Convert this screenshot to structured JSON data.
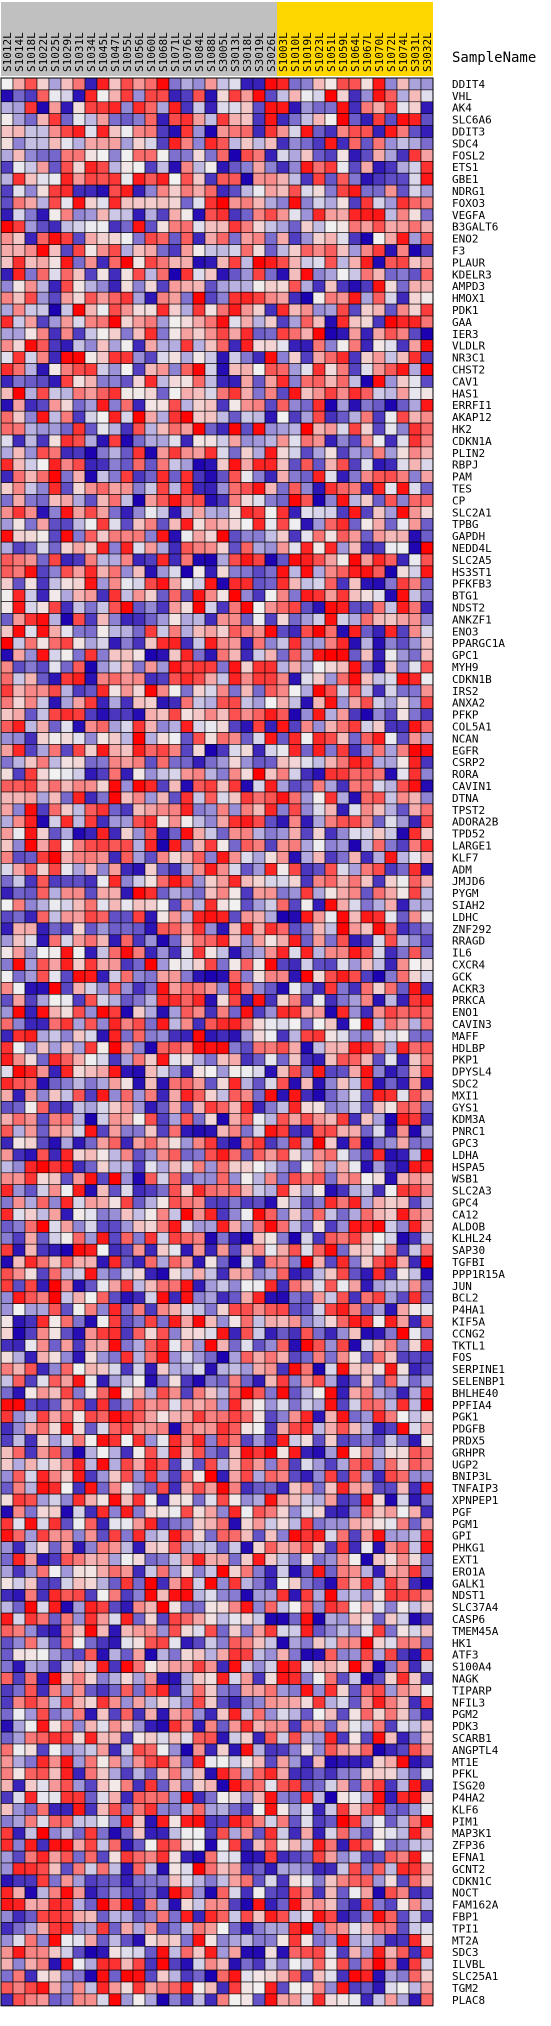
{
  "chart_data": {
    "type": "heatmap",
    "title": "",
    "column_header_label": "SampleName",
    "columns": [
      "S1012L",
      "S1014L",
      "S1018L",
      "S1022L",
      "S1025L",
      "S1029L",
      "S1031L",
      "S1034L",
      "S1045L",
      "S1047L",
      "S1055L",
      "S1056L",
      "S1060L",
      "S1068L",
      "S1071L",
      "S1076L",
      "S1084L",
      "S1088L",
      "S3005L",
      "S3013L",
      "S3018L",
      "S3019L",
      "S3026L",
      "S1003L",
      "S1010L",
      "S1019L",
      "S1023L",
      "S1051L",
      "S1059L",
      "S1064L",
      "S1067L",
      "S1070L",
      "S1072L",
      "S1074L",
      "S3031L",
      "S3032L"
    ],
    "column_groups": [
      {
        "color": "#c0c0c0",
        "count": 23
      },
      {
        "color": "#ffd700",
        "count": 13
      }
    ],
    "rows": [
      "DDIT4",
      "VHL",
      "AK4",
      "SLC6A6",
      "DDIT3",
      "SDC4",
      "FOSL2",
      "ETS1",
      "GBE1",
      "NDRG1",
      "FOXO3",
      "VEGFA",
      "B3GALT6",
      "ENO2",
      "F3",
      "PLAUR",
      "KDELR3",
      "AMPD3",
      "HMOX1",
      "PDK1",
      "GAA",
      "IER3",
      "VLDLR",
      "NR3C1",
      "CHST2",
      "CAV1",
      "HAS1",
      "ERRFI1",
      "AKAP12",
      "HK2",
      "CDKN1A",
      "PLIN2",
      "RBPJ",
      "PAM",
      "TES",
      "CP",
      "SLC2A1",
      "TPBG",
      "GAPDH",
      "NEDD4L",
      "SLC2A5",
      "HS3ST1",
      "PFKFB3",
      "BTG1",
      "NDST2",
      "ANKZF1",
      "ENO3",
      "PPARGC1A",
      "GPC1",
      "MYH9",
      "CDKN1B",
      "IRS2",
      "ANXA2",
      "PFKP",
      "COL5A1",
      "NCAN",
      "EGFR",
      "CSRP2",
      "RORA",
      "CAVIN1",
      "DTNA",
      "TPST2",
      "ADORA2B",
      "TPD52",
      "LARGE1",
      "KLF7",
      "ADM",
      "JMJD6",
      "PYGM",
      "SIAH2",
      "LDHC",
      "ZNF292",
      "RRAGD",
      "IL6",
      "CXCR4",
      "GCK",
      "ACKR3",
      "PRKCA",
      "ENO1",
      "CAVIN3",
      "MAFF",
      "HDLBP",
      "PKP1",
      "DPYSL4",
      "SDC2",
      "MXI1",
      "GYS1",
      "KDM3A",
      "PNRC1",
      "GPC3",
      "LDHA",
      "HSPA5",
      "WSB1",
      "SLC2A3",
      "GPC4",
      "CA12",
      "ALDOB",
      "KLHL24",
      "SAP30",
      "TGFBI",
      "PPP1R15A",
      "JUN",
      "BCL2",
      "P4HA1",
      "KIF5A",
      "CCNG2",
      "TKTL1",
      "FOS",
      "SERPINE1",
      "SELENBP1",
      "BHLHE40",
      "PPFIA4",
      "PGK1",
      "PDGFB",
      "PRDX5",
      "GRHPR",
      "UGP2",
      "BNIP3L",
      "TNFAIP3",
      "XPNPEP1",
      "PGF",
      "PGM1",
      "GPI",
      "PHKG1",
      "EXT1",
      "ERO1A",
      "GALK1",
      "NDST1",
      "SLC37A4",
      "CASP6",
      "TMEM45A",
      "HK1",
      "ATF3",
      "S100A4",
      "NAGK",
      "TIPARP",
      "NFIL3",
      "PGM2",
      "PDK3",
      "SCARB1",
      "ANGPTL4",
      "MT1E",
      "PFKL",
      "ISG20",
      "P4HA2",
      "KLF6",
      "PIM1",
      "MAP3K1",
      "ZFP36",
      "EFNA1",
      "GCNT2",
      "CDKN1C",
      "NOCT",
      "FAM162A",
      "FBP1",
      "TPI1",
      "MT2A",
      "SDC3",
      "ILVBL",
      "SLC25A1",
      "TGM2",
      "PLAC8"
    ],
    "value_range": [
      -1,
      1
    ],
    "color_scale": {
      "low": "#1a00b0",
      "mid": "#f2f2f2",
      "high": "#ff0000"
    },
    "grid": true,
    "values_seed": 20240531
  }
}
